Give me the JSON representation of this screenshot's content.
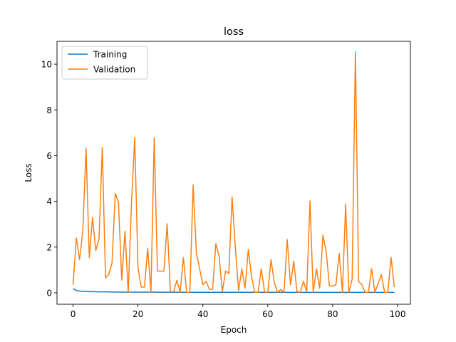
{
  "chart_data": {
    "type": "line",
    "title": "loss",
    "xlabel": "Epoch",
    "ylabel": "Loss",
    "xlim": [
      -4.95,
      103.95
    ],
    "ylim": [
      -0.5,
      11.0
    ],
    "xticks": [
      0,
      20,
      40,
      60,
      80,
      100
    ],
    "yticks": [
      0,
      2,
      4,
      6,
      8,
      10
    ],
    "grid": false,
    "legend": "top-left",
    "series": [
      {
        "name": "Training",
        "color": "#1f77b4",
        "x": [
          0,
          1,
          2,
          3,
          4,
          5,
          6,
          7,
          8,
          9,
          10,
          11,
          12,
          13,
          14,
          15,
          16,
          17,
          18,
          19,
          20,
          21,
          22,
          23,
          24,
          25,
          26,
          27,
          28,
          29,
          30,
          31,
          32,
          33,
          34,
          35,
          36,
          37,
          38,
          39,
          40,
          41,
          42,
          43,
          44,
          45,
          46,
          47,
          48,
          49,
          50,
          51,
          52,
          53,
          54,
          55,
          56,
          57,
          58,
          59,
          60,
          61,
          62,
          63,
          64,
          65,
          66,
          67,
          68,
          69,
          70,
          71,
          72,
          73,
          74,
          75,
          76,
          77,
          78,
          79,
          80,
          81,
          82,
          83,
          84,
          85,
          86,
          87,
          88,
          89,
          90,
          91,
          92,
          93,
          94,
          95,
          96,
          97,
          98,
          99
        ],
        "values": [
          0.18,
          0.1,
          0.08,
          0.06,
          0.06,
          0.05,
          0.05,
          0.045,
          0.04,
          0.04,
          0.04,
          0.04,
          0.035,
          0.035,
          0.035,
          0.03,
          0.03,
          0.03,
          0.03,
          0.03,
          0.03,
          0.03,
          0.03,
          0.028,
          0.028,
          0.028,
          0.027,
          0.027,
          0.026,
          0.026,
          0.025,
          0.025,
          0.025,
          0.025,
          0.024,
          0.024,
          0.024,
          0.024,
          0.023,
          0.023,
          0.023,
          0.023,
          0.022,
          0.022,
          0.022,
          0.022,
          0.022,
          0.021,
          0.021,
          0.021,
          0.021,
          0.021,
          0.02,
          0.02,
          0.02,
          0.02,
          0.02,
          0.02,
          0.02,
          0.02,
          0.02,
          0.02,
          0.02,
          0.02,
          0.02,
          0.02,
          0.019,
          0.019,
          0.019,
          0.019,
          0.019,
          0.019,
          0.019,
          0.019,
          0.019,
          0.019,
          0.019,
          0.019,
          0.018,
          0.018,
          0.018,
          0.018,
          0.018,
          0.018,
          0.018,
          0.018,
          0.018,
          0.018,
          0.018,
          0.018,
          0.018,
          0.018,
          0.018,
          0.017,
          0.017,
          0.017,
          0.017,
          0.017,
          0.017,
          0.017
        ]
      },
      {
        "name": "Validation",
        "color": "#ff7f0e",
        "x": [
          0,
          1,
          2,
          3,
          4,
          5,
          6,
          7,
          8,
          9,
          10,
          11,
          12,
          13,
          14,
          15,
          16,
          17,
          18,
          19,
          20,
          21,
          22,
          23,
          24,
          25,
          26,
          27,
          28,
          29,
          30,
          31,
          32,
          33,
          34,
          35,
          36,
          37,
          38,
          39,
          40,
          41,
          42,
          43,
          44,
          45,
          46,
          47,
          48,
          49,
          50,
          51,
          52,
          53,
          54,
          55,
          56,
          57,
          58,
          59,
          60,
          61,
          62,
          63,
          64,
          65,
          66,
          67,
          68,
          69,
          70,
          71,
          72,
          73,
          74,
          75,
          76,
          77,
          78,
          79,
          80,
          81,
          82,
          83,
          84,
          85,
          86,
          87,
          88,
          89,
          90,
          91,
          92,
          93,
          94,
          95,
          96,
          97,
          98,
          99
        ],
        "values": [
          0.35,
          2.4,
          1.45,
          2.7,
          6.32,
          1.55,
          3.3,
          1.85,
          2.35,
          6.35,
          0.65,
          0.8,
          1.3,
          4.35,
          3.95,
          0.55,
          2.7,
          0.02,
          3.9,
          6.8,
          1.1,
          0.25,
          0.25,
          1.95,
          0.02,
          6.78,
          0.95,
          0.95,
          0.95,
          3.02,
          0.05,
          0.05,
          0.55,
          0.02,
          1.55,
          0.02,
          0.02,
          4.72,
          1.75,
          1.05,
          0.35,
          0.5,
          0.15,
          0.15,
          2.15,
          1.6,
          0.05,
          0.95,
          0.85,
          4.2,
          2.0,
          0.1,
          1.05,
          0.2,
          1.9,
          0.7,
          0.02,
          0.02,
          1.05,
          0.05,
          0.02,
          1.45,
          0.45,
          0.02,
          0.15,
          0.02,
          2.33,
          0.35,
          1.38,
          0.05,
          0.02,
          0.5,
          0.05,
          4.02,
          0.02,
          1.05,
          0.2,
          2.52,
          1.8,
          0.3,
          0.3,
          0.35,
          1.72,
          0.02,
          3.87,
          0.02,
          0.6,
          10.55,
          0.5,
          0.35,
          0.02,
          0.02,
          1.05,
          0.02,
          0.4,
          0.8,
          0.02,
          0.02,
          1.55,
          0.25
        ]
      }
    ]
  }
}
